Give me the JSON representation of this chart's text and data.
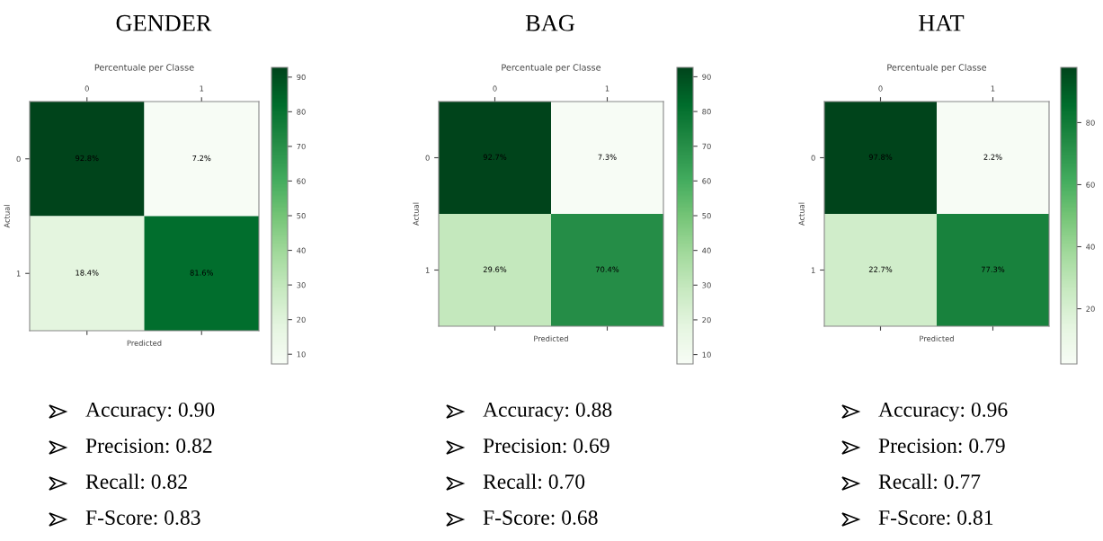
{
  "chart_data": [
    {
      "type": "heatmap",
      "title": "GENDER",
      "subtitle": "Percentuale per Classe",
      "xlabel": "Predicted",
      "ylabel": "Actual",
      "categories": [
        "0",
        "1"
      ],
      "y_categories": [
        "0",
        "1"
      ],
      "cells": [
        [
          92.8,
          7.2
        ],
        [
          18.4,
          81.6
        ]
      ],
      "cell_labels": [
        [
          "92.8%",
          "7.2%"
        ],
        [
          "18.4%",
          "81.6%"
        ]
      ],
      "clim": [
        7.2,
        92.8
      ],
      "cticks": [
        10,
        20,
        30,
        40,
        50,
        60,
        70,
        80,
        90
      ],
      "annotations": [
        "Accuracy: 0.90",
        "Precision: 0.82",
        "Recall: 0.82",
        "F-Score: 0.83"
      ]
    },
    {
      "type": "heatmap",
      "title": "BAG",
      "subtitle": "Percentuale per Classe",
      "xlabel": "Predicted",
      "ylabel": "Actual",
      "categories": [
        "0",
        "1"
      ],
      "y_categories": [
        "0",
        "1"
      ],
      "cells": [
        [
          92.7,
          7.3
        ],
        [
          29.6,
          70.4
        ]
      ],
      "cell_labels": [
        [
          "92.7%",
          "7.3%"
        ],
        [
          "29.6%",
          "70.4%"
        ]
      ],
      "clim": [
        7.3,
        92.7
      ],
      "cticks": [
        10,
        20,
        30,
        40,
        50,
        60,
        70,
        80,
        90
      ],
      "annotations": [
        "Accuracy: 0.88",
        "Precision: 0.69",
        "Recall: 0.70",
        "F-Score: 0.68"
      ]
    },
    {
      "type": "heatmap",
      "title": "HAT",
      "subtitle": "Percentuale per Classe",
      "xlabel": "Predicted",
      "ylabel": "Actual",
      "categories": [
        "0",
        "1"
      ],
      "y_categories": [
        "0",
        "1"
      ],
      "cells": [
        [
          97.8,
          2.2
        ],
        [
          22.7,
          77.3
        ]
      ],
      "cell_labels": [
        [
          "97.8%",
          "2.2%"
        ],
        [
          "22.7%",
          "77.3%"
        ]
      ],
      "clim": [
        2.2,
        97.8
      ],
      "cticks": [
        20,
        40,
        60,
        80
      ],
      "annotations": [
        "Accuracy: 0.96",
        "Precision: 0.79",
        "Recall: 0.77",
        "F-Score: 0.81"
      ]
    }
  ]
}
